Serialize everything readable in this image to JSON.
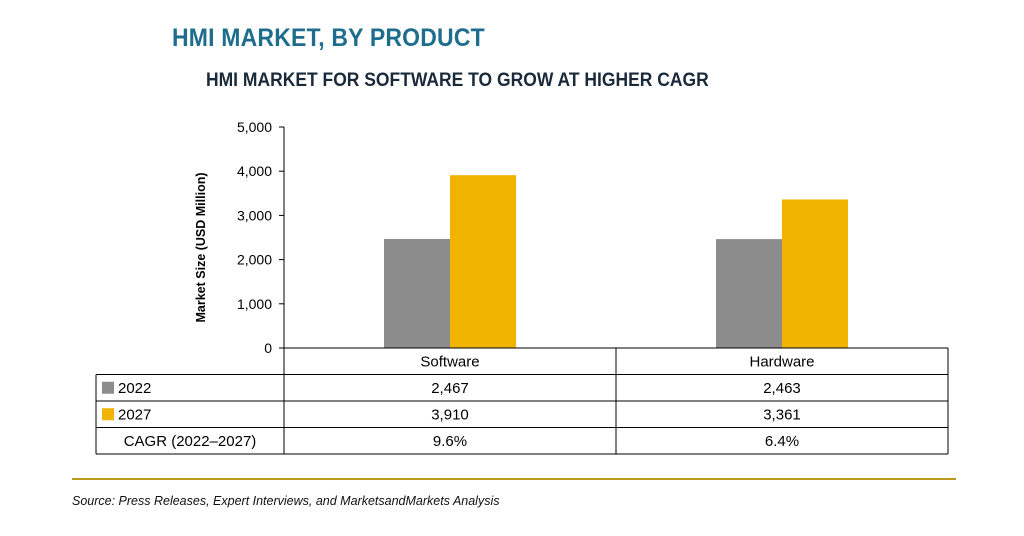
{
  "title": "HMI MARKET, BY PRODUCT",
  "subtitle": "HMI MARKET FOR SOFTWARE TO GROW AT HIGHER CAGR",
  "source": "Source: Press Releases, Expert Interviews, and MarketsandMarkets Analysis",
  "colors": {
    "s2022": "#8c8c8c",
    "s2027": "#f0b400",
    "title": "#1e6d8c",
    "divider": "#b89a1e"
  },
  "chart_data": {
    "type": "bar",
    "title": "HMI MARKET FOR SOFTWARE TO GROW AT HIGHER CAGR",
    "ylabel": "Market Size (USD Million)",
    "xlabel": "",
    "categories": [
      "Software",
      "Hardware"
    ],
    "ylim": [
      0,
      5000
    ],
    "yticks": [
      0,
      1000,
      2000,
      3000,
      4000,
      5000
    ],
    "ytick_labels": [
      "0",
      "1,000",
      "2,000",
      "3,000",
      "4,000",
      "5,000"
    ],
    "series": [
      {
        "name": "2022",
        "values": [
          2467,
          2463
        ],
        "labels": [
          "2,467",
          "2,463"
        ]
      },
      {
        "name": "2027",
        "values": [
          3910,
          3361
        ],
        "labels": [
          "3,910",
          "3,361"
        ]
      }
    ],
    "grid": false,
    "legend": "data-table"
  },
  "table": {
    "cagr_label": "CAGR (2022–2027)",
    "cagr_values": [
      "9.6%",
      "6.4%"
    ]
  }
}
